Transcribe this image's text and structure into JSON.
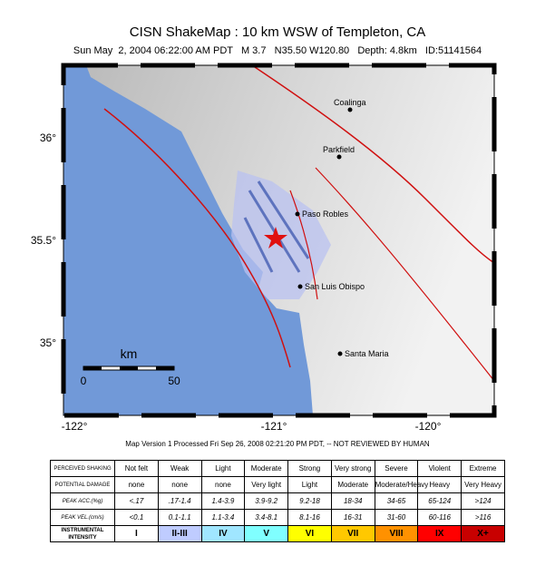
{
  "header": {
    "title": "CISN ShakeMap : 10 km WSW of  Templeton, CA",
    "subtitle": "Sun May  2, 2004 06:22:00 AM PDT   M 3.7   N35.50 W120.80   Depth: 4.8km   ID:51141564"
  },
  "map": {
    "lat_labels": [
      "36°",
      "35.5°",
      "35°"
    ],
    "lon_labels": [
      "-122°",
      "-121°",
      "-120°"
    ],
    "cities": [
      "Coalinga",
      "Parkfield",
      "Paso Robles",
      "San Luis Obispo",
      "Santa Maria"
    ],
    "scale": {
      "unit": "km",
      "start": "0",
      "end": "50"
    }
  },
  "footer": "Map Version 1 Processed Fri Sep 26, 2008 02:21:20 PM PDT, -- NOT REVIEWED BY HUMAN",
  "legend": {
    "rows": [
      {
        "label": "PERCEIVED SHAKING",
        "cells": [
          "Not felt",
          "Weak",
          "Light",
          "Moderate",
          "Strong",
          "Very strong",
          "Severe",
          "Violent",
          "Extreme"
        ]
      },
      {
        "label": "POTENTIAL DAMAGE",
        "cells": [
          "none",
          "none",
          "none",
          "Very light",
          "Light",
          "Moderate",
          "Moderate/Heavy",
          "Heavy",
          "Very Heavy"
        ]
      },
      {
        "label": "PEAK ACC.(%g)",
        "cells": [
          "<.17",
          ".17-1.4",
          "1.4-3.9",
          "3.9-9.2",
          "9.2-18",
          "18-34",
          "34-65",
          "65-124",
          ">124"
        ]
      },
      {
        "label": "PEAK VEL.(cm/s)",
        "cells": [
          "<0.1",
          "0.1-1.1",
          "1.1-3.4",
          "3.4-8.1",
          "8.1-16",
          "16-31",
          "31-60",
          "60-116",
          ">116"
        ]
      },
      {
        "label": "INSTRUMENTAL INTENSITY",
        "cells": [
          "I",
          "II-III",
          "IV",
          "V",
          "VI",
          "VII",
          "VIII",
          "IX",
          "X+"
        ]
      }
    ]
  }
}
